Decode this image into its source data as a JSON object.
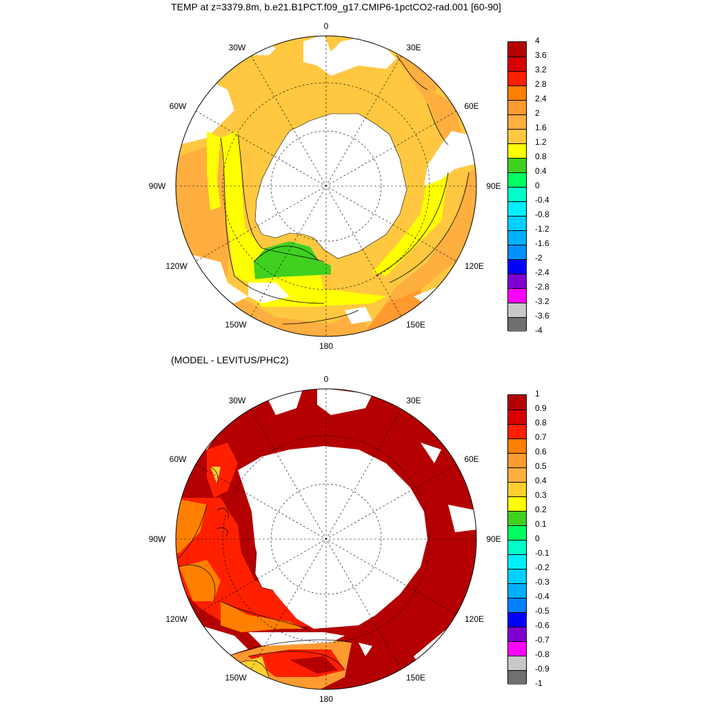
{
  "panels": [
    {
      "id": "top",
      "title": "TEMP at z=3379.8m, b.e21.B1PCT.f09_g17.CMIP6-1pctCO2-rad.001 [60-90]",
      "lon_labels": [
        "0",
        "30E",
        "60E",
        "90E",
        "120E",
        "150E",
        "180",
        "150W",
        "120W",
        "90W",
        "60W",
        "30W"
      ],
      "colorbar": {
        "labels": [
          "4",
          "3.6",
          "3.2",
          "2.8",
          "2.4",
          "2",
          "1.6",
          "1.2",
          "0.8",
          "0.4",
          "0",
          "-0.4",
          "-0.8",
          "-1.2",
          "-1.6",
          "-2",
          "-2.4",
          "-2.8",
          "-3.2",
          "-3.6",
          "-4"
        ],
        "colors": [
          "#b40000",
          "#d80000",
          "#ff2000",
          "#ff8000",
          "#ff9a30",
          "#ffae40",
          "#ffc840",
          "#ffff00",
          "#40d020",
          "#00ff60",
          "#00ffc8",
          "#00f0ff",
          "#00d0ff",
          "#00b0ff",
          "#0090ff",
          "#0000ff",
          "#8000d0",
          "#ff00ff",
          "#c8c8c8",
          "#707070"
        ]
      }
    },
    {
      "id": "bottom",
      "title": "(MODEL - LEVITUS/PHC2)",
      "lon_labels": [
        "0",
        "30E",
        "60E",
        "90E",
        "120E",
        "150E",
        "180",
        "150W",
        "120W",
        "90W",
        "60W",
        "30W"
      ],
      "colorbar": {
        "labels": [
          "1",
          "0.9",
          "0.8",
          "0.7",
          "0.6",
          "0.5",
          "0.4",
          "0.3",
          "0.2",
          "0.1",
          "0",
          "-0.1",
          "-0.2",
          "-0.3",
          "-0.4",
          "-0.5",
          "-0.6",
          "-0.7",
          "-0.8",
          "-0.9",
          "-1"
        ],
        "colors": [
          "#b40000",
          "#d80000",
          "#ff2000",
          "#ff8000",
          "#ff9a30",
          "#ffae40",
          "#ffd030",
          "#ffff00",
          "#40d020",
          "#00ff60",
          "#00ffc8",
          "#00f0ff",
          "#00d0ff",
          "#00b0ff",
          "#0080ff",
          "#0000ff",
          "#8000d0",
          "#ff00ff",
          "#c8c8c8",
          "#707070"
        ]
      }
    }
  ]
}
